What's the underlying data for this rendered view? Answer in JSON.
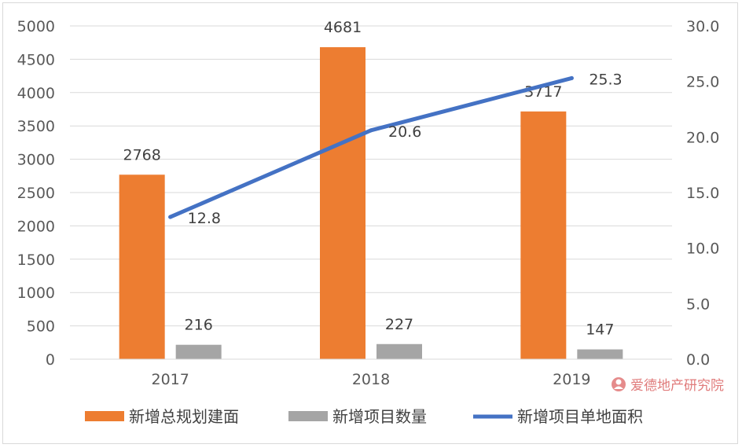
{
  "chart_data": {
    "type": "bar",
    "categories": [
      "2017",
      "2018",
      "2019"
    ],
    "series": [
      {
        "name": "新增总规划建面",
        "type": "bar",
        "axis": "left",
        "color": "#ED7D31",
        "values": [
          2768,
          4681,
          3717
        ],
        "labels": [
          "2768",
          "4681",
          "3717"
        ]
      },
      {
        "name": "新增项目数量",
        "type": "bar",
        "axis": "left",
        "color": "#A5A5A5",
        "values": [
          216,
          227,
          147
        ],
        "labels": [
          "216",
          "227",
          "147"
        ]
      },
      {
        "name": "新增项目单地面积",
        "type": "line",
        "axis": "right",
        "color": "#4472C4",
        "values": [
          12.8,
          20.6,
          25.3
        ],
        "labels": [
          "12.8",
          "20.6",
          "25.3"
        ]
      }
    ],
    "y_left": {
      "min": 0,
      "max": 5000,
      "step": 500,
      "ticks": [
        "0",
        "500",
        "1000",
        "1500",
        "2000",
        "2500",
        "3000",
        "3500",
        "4000",
        "4500",
        "5000"
      ]
    },
    "y_right": {
      "min": 0,
      "max": 30,
      "step": 5,
      "ticks": [
        "0.0",
        "5.0",
        "10.0",
        "15.0",
        "20.0",
        "25.0",
        "30.0"
      ]
    },
    "grid": true,
    "legend_position": "bottom"
  },
  "watermark": {
    "text": "爱德地产研究院",
    "color": "#e07b7b"
  }
}
